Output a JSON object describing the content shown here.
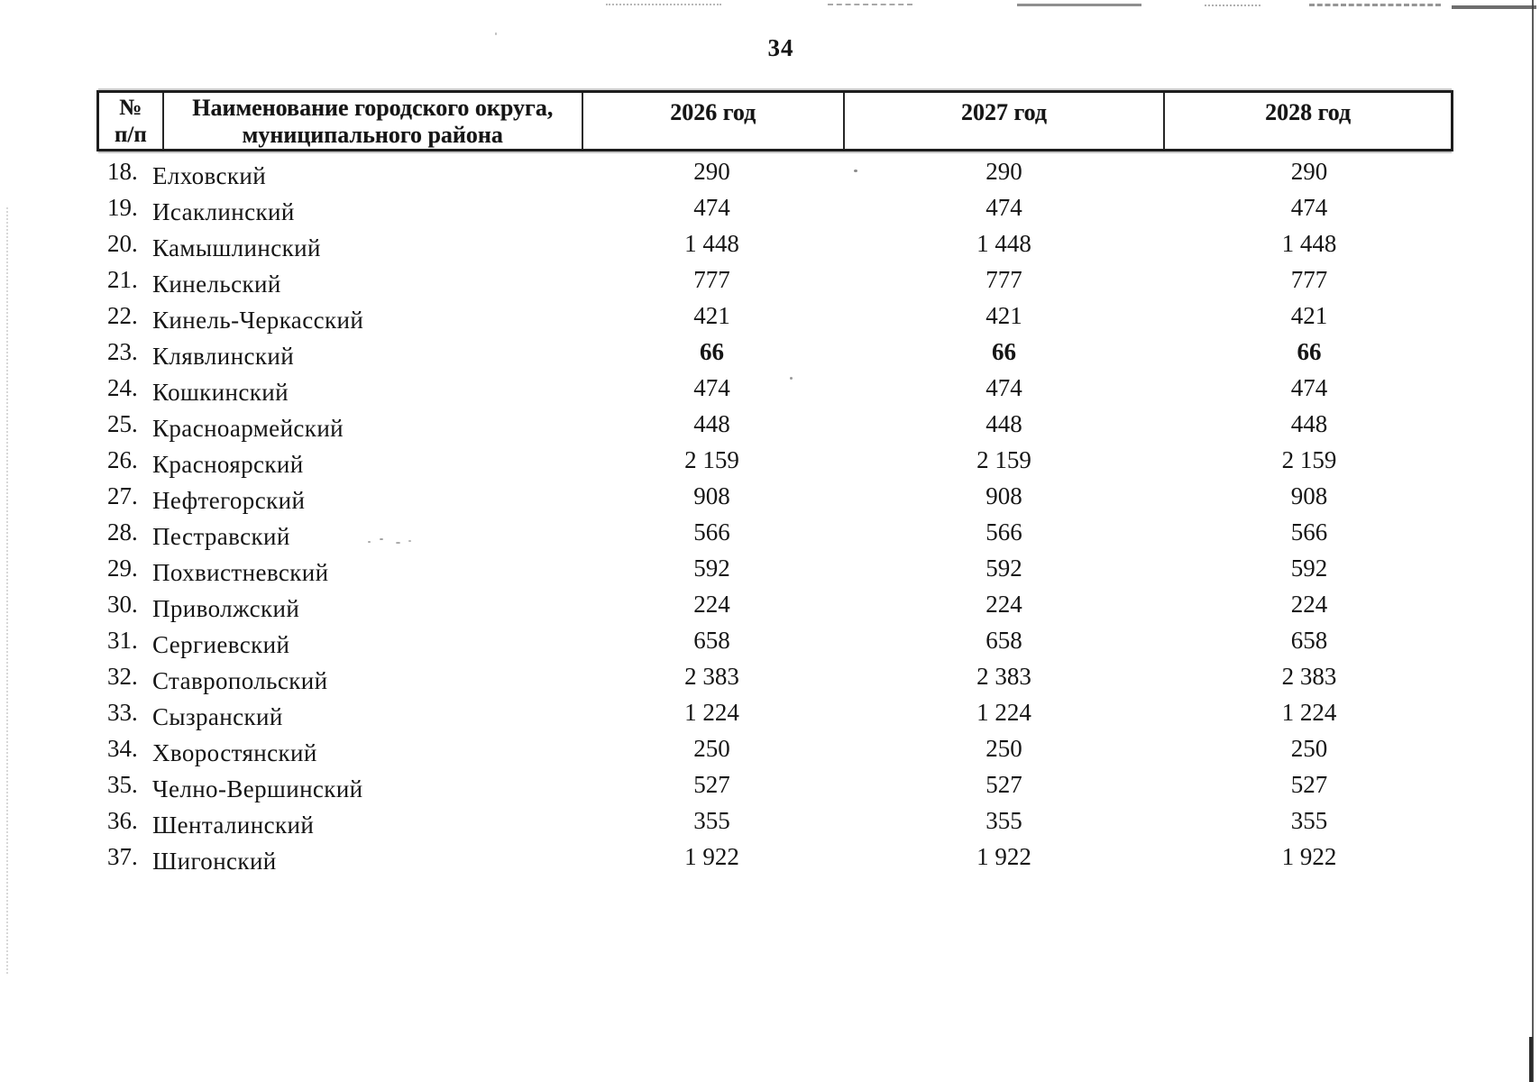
{
  "page": {
    "number": "34"
  },
  "colors": {
    "text": "#151515",
    "background": "#ffffff"
  },
  "table": {
    "headers": {
      "num_line1": "№",
      "num_line2": "п/п",
      "name_line1": "Наименование городского округа,",
      "name_line2": "муниципального района",
      "y2026": "2026 год",
      "y2027": "2027 год",
      "y2028": "2028 год"
    },
    "rows": [
      {
        "num": "18.",
        "name": "Елховский",
        "v2026": "290",
        "v2027": "290",
        "v2028": "290"
      },
      {
        "num": "19.",
        "name": "Исаклинский",
        "v2026": "474",
        "v2027": "474",
        "v2028": "474"
      },
      {
        "num": "20.",
        "name": "Камышлинский",
        "v2026": "1 448",
        "v2027": "1 448",
        "v2028": "1 448"
      },
      {
        "num": "21.",
        "name": "Кинельский",
        "v2026": "777",
        "v2027": "777",
        "v2028": "777"
      },
      {
        "num": "22.",
        "name": "Кинель-Черкасский",
        "v2026": "421",
        "v2027": "421",
        "v2028": "421"
      },
      {
        "num": "23.",
        "name": "Клявлинский",
        "v2026": "66",
        "v2027": "66",
        "v2028": "66",
        "bold": true
      },
      {
        "num": "24.",
        "name": "Кошкинский",
        "v2026": "474",
        "v2027": "474",
        "v2028": "474"
      },
      {
        "num": "25.",
        "name": "Красноармейский",
        "v2026": "448",
        "v2027": "448",
        "v2028": "448"
      },
      {
        "num": "26.",
        "name": "Красноярский",
        "v2026": "2 159",
        "v2027": "2 159",
        "v2028": "2 159"
      },
      {
        "num": "27.",
        "name": "Нефтегорский",
        "v2026": "908",
        "v2027": "908",
        "v2028": "908"
      },
      {
        "num": "28.",
        "name": "Пестравский",
        "v2026": "566",
        "v2027": "566",
        "v2028": "566"
      },
      {
        "num": "29.",
        "name": "Похвистневский",
        "v2026": "592",
        "v2027": "592",
        "v2028": "592"
      },
      {
        "num": "30.",
        "name": "Приволжский",
        "v2026": "224",
        "v2027": "224",
        "v2028": "224"
      },
      {
        "num": "31.",
        "name": "Сергиевский",
        "v2026": "658",
        "v2027": "658",
        "v2028": "658"
      },
      {
        "num": "32.",
        "name": "Ставропольский",
        "v2026": "2 383",
        "v2027": "2 383",
        "v2028": "2 383"
      },
      {
        "num": "33.",
        "name": "Сызранский",
        "v2026": "1 224",
        "v2027": "1 224",
        "v2028": "1 224"
      },
      {
        "num": "34.",
        "name": "Хворостянский",
        "v2026": "250",
        "v2027": "250",
        "v2028": "250"
      },
      {
        "num": "35.",
        "name": "Челно-Вершинский",
        "v2026": "527",
        "v2027": "527",
        "v2028": "527"
      },
      {
        "num": "36.",
        "name": "Шенталинский",
        "v2026": "355",
        "v2027": "355",
        "v2028": "355"
      },
      {
        "num": "37.",
        "name": "Шигонский",
        "v2026": "1 922",
        "v2027": "1 922",
        "v2028": "1 922"
      }
    ]
  }
}
